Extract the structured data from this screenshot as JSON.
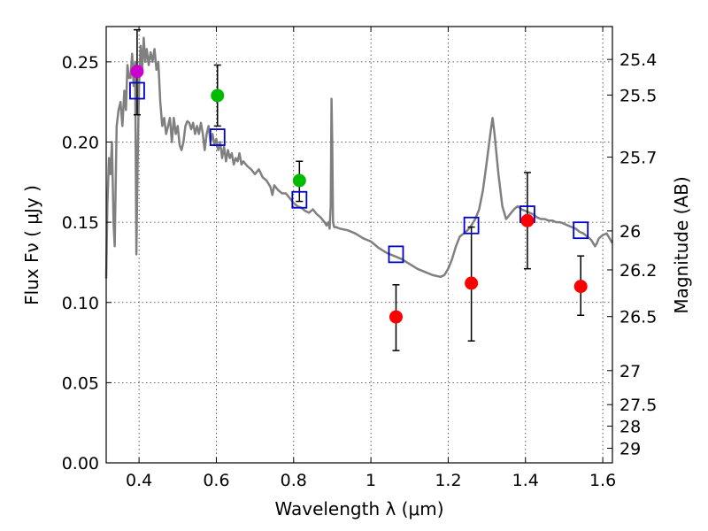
{
  "chart_data": {
    "type": "scatter",
    "title": "",
    "xlabel": "Wavelength  λ (μm)",
    "ylabel": "Flux  Fν  ( μJy )",
    "y2label": "Magnitude (AB)",
    "xlim": [
      0.315,
      1.625
    ],
    "ylim": [
      0.0,
      0.272
    ],
    "grid": true,
    "x_ticks": [
      0.4,
      0.6,
      0.8,
      1.0,
      1.2,
      1.4,
      1.6
    ],
    "x_tick_labels": [
      "0.4",
      "0.6",
      "0.8",
      "1",
      "1.2",
      "1.4",
      "1.6"
    ],
    "y_ticks": [
      0.0,
      0.05,
      0.1,
      0.15,
      0.2,
      0.25
    ],
    "y_tick_labels": [
      "0.00",
      "0.05",
      "0.10",
      "0.15",
      "0.20",
      "0.25"
    ],
    "y2_ticks": [
      {
        "label": "25.4",
        "flux": 0.2515
      },
      {
        "label": "25.5",
        "flux": 0.2293
      },
      {
        "label": "25.7",
        "flux": 0.1906
      },
      {
        "label": "26",
        "flux": 0.1446
      },
      {
        "label": "26.2",
        "flux": 0.1203
      },
      {
        "label": "26.5",
        "flux": 0.0912
      },
      {
        "label": "27",
        "flux": 0.0575
      },
      {
        "label": "27.5",
        "flux": 0.0363
      },
      {
        "label": "28",
        "flux": 0.0229
      },
      {
        "label": "29",
        "flux": 0.0091
      }
    ],
    "series": [
      {
        "kind": "line",
        "color": "#808080",
        "points": [
          [
            0.315,
            0.115
          ],
          [
            0.318,
            0.16
          ],
          [
            0.322,
            0.19
          ],
          [
            0.326,
            0.18
          ],
          [
            0.33,
            0.2
          ],
          [
            0.334,
            0.15
          ],
          [
            0.337,
            0.135
          ],
          [
            0.342,
            0.21
          ],
          [
            0.347,
            0.22
          ],
          [
            0.352,
            0.225
          ],
          [
            0.357,
            0.21
          ],
          [
            0.362,
            0.232
          ],
          [
            0.366,
            0.22
          ],
          [
            0.37,
            0.248
          ],
          [
            0.374,
            0.24
          ],
          [
            0.378,
            0.24
          ],
          [
            0.382,
            0.255
          ],
          [
            0.386,
            0.235
          ],
          [
            0.39,
            0.25
          ],
          [
            0.393,
            0.13
          ],
          [
            0.396,
            0.185
          ],
          [
            0.4,
            0.235
          ],
          [
            0.404,
            0.26
          ],
          [
            0.408,
            0.245
          ],
          [
            0.412,
            0.265
          ],
          [
            0.416,
            0.25
          ],
          [
            0.42,
            0.258
          ],
          [
            0.425,
            0.248
          ],
          [
            0.43,
            0.256
          ],
          [
            0.435,
            0.25
          ],
          [
            0.44,
            0.258
          ],
          [
            0.445,
            0.245
          ],
          [
            0.45,
            0.25
          ],
          [
            0.455,
            0.225
          ],
          [
            0.46,
            0.21
          ],
          [
            0.465,
            0.215
          ],
          [
            0.47,
            0.205
          ],
          [
            0.475,
            0.21
          ],
          [
            0.48,
            0.215
          ],
          [
            0.485,
            0.2
          ],
          [
            0.49,
            0.215
          ],
          [
            0.495,
            0.205
          ],
          [
            0.5,
            0.21
          ],
          [
            0.505,
            0.198
          ],
          [
            0.51,
            0.195
          ],
          [
            0.515,
            0.2
          ],
          [
            0.52,
            0.21
          ],
          [
            0.525,
            0.213
          ],
          [
            0.53,
            0.212
          ],
          [
            0.535,
            0.208
          ],
          [
            0.54,
            0.212
          ],
          [
            0.545,
            0.205
          ],
          [
            0.55,
            0.21
          ],
          [
            0.555,
            0.205
          ],
          [
            0.56,
            0.212
          ],
          [
            0.565,
            0.205
          ],
          [
            0.57,
            0.195
          ],
          [
            0.575,
            0.205
          ],
          [
            0.58,
            0.21
          ],
          [
            0.585,
            0.2
          ],
          [
            0.59,
            0.205
          ],
          [
            0.595,
            0.198
          ],
          [
            0.6,
            0.202
          ],
          [
            0.605,
            0.195
          ],
          [
            0.61,
            0.2
          ],
          [
            0.615,
            0.19
          ],
          [
            0.62,
            0.197
          ],
          [
            0.625,
            0.188
          ],
          [
            0.63,
            0.195
          ],
          [
            0.635,
            0.19
          ],
          [
            0.64,
            0.193
          ],
          [
            0.645,
            0.186
          ],
          [
            0.65,
            0.19
          ],
          [
            0.655,
            0.188
          ],
          [
            0.66,
            0.193
          ],
          [
            0.665,
            0.186
          ],
          [
            0.67,
            0.188
          ],
          [
            0.68,
            0.185
          ],
          [
            0.69,
            0.183
          ],
          [
            0.7,
            0.18
          ],
          [
            0.71,
            0.183
          ],
          [
            0.72,
            0.178
          ],
          [
            0.73,
            0.176
          ],
          [
            0.74,
            0.172
          ],
          [
            0.745,
            0.167
          ],
          [
            0.75,
            0.173
          ],
          [
            0.76,
            0.17
          ],
          [
            0.77,
            0.168
          ],
          [
            0.78,
            0.168
          ],
          [
            0.79,
            0.165
          ],
          [
            0.8,
            0.162
          ],
          [
            0.81,
            0.16
          ],
          [
            0.82,
            0.159
          ],
          [
            0.83,
            0.157
          ],
          [
            0.84,
            0.156
          ],
          [
            0.85,
            0.158
          ],
          [
            0.86,
            0.155
          ],
          [
            0.87,
            0.153
          ],
          [
            0.88,
            0.15
          ],
          [
            0.885,
            0.148
          ],
          [
            0.89,
            0.15
          ],
          [
            0.893,
            0.146
          ],
          [
            0.896,
            0.16
          ],
          [
            0.898,
            0.227
          ],
          [
            0.9,
            0.2
          ],
          [
            0.902,
            0.15
          ],
          [
            0.905,
            0.147
          ],
          [
            0.91,
            0.147
          ],
          [
            0.92,
            0.146
          ],
          [
            0.94,
            0.145
          ],
          [
            0.96,
            0.143
          ],
          [
            0.98,
            0.14
          ],
          [
            1.0,
            0.138
          ],
          [
            1.02,
            0.134
          ],
          [
            1.04,
            0.131
          ],
          [
            1.06,
            0.129
          ],
          [
            1.08,
            0.127
          ],
          [
            1.1,
            0.124
          ],
          [
            1.12,
            0.121
          ],
          [
            1.14,
            0.119
          ],
          [
            1.16,
            0.117
          ],
          [
            1.18,
            0.116
          ],
          [
            1.19,
            0.117
          ],
          [
            1.2,
            0.121
          ],
          [
            1.21,
            0.127
          ],
          [
            1.22,
            0.135
          ],
          [
            1.23,
            0.141
          ],
          [
            1.24,
            0.143
          ],
          [
            1.25,
            0.145
          ],
          [
            1.26,
            0.148
          ],
          [
            1.27,
            0.152
          ],
          [
            1.28,
            0.158
          ],
          [
            1.29,
            0.17
          ],
          [
            1.3,
            0.188
          ],
          [
            1.31,
            0.207
          ],
          [
            1.315,
            0.215
          ],
          [
            1.32,
            0.205
          ],
          [
            1.33,
            0.18
          ],
          [
            1.34,
            0.16
          ],
          [
            1.35,
            0.152
          ],
          [
            1.36,
            0.155
          ],
          [
            1.37,
            0.158
          ],
          [
            1.38,
            0.16
          ],
          [
            1.39,
            0.158
          ],
          [
            1.4,
            0.157
          ],
          [
            1.41,
            0.156
          ],
          [
            1.42,
            0.155
          ],
          [
            1.43,
            0.153
          ],
          [
            1.44,
            0.152
          ],
          [
            1.45,
            0.152
          ],
          [
            1.46,
            0.151
          ],
          [
            1.47,
            0.151
          ],
          [
            1.48,
            0.15
          ],
          [
            1.49,
            0.15
          ],
          [
            1.5,
            0.149
          ],
          [
            1.51,
            0.148
          ],
          [
            1.52,
            0.147
          ],
          [
            1.53,
            0.146
          ],
          [
            1.54,
            0.144
          ],
          [
            1.55,
            0.143
          ],
          [
            1.56,
            0.141
          ],
          [
            1.57,
            0.139
          ],
          [
            1.575,
            0.137
          ],
          [
            1.58,
            0.135
          ],
          [
            1.585,
            0.137
          ],
          [
            1.59,
            0.14
          ],
          [
            1.6,
            0.142
          ],
          [
            1.61,
            0.143
          ],
          [
            1.615,
            0.141
          ],
          [
            1.625,
            0.137
          ]
        ]
      },
      {
        "kind": "squares",
        "color": "#0000cc",
        "points": [
          [
            0.395,
            0.232
          ],
          [
            0.603,
            0.203
          ],
          [
            0.815,
            0.164
          ],
          [
            1.065,
            0.13
          ],
          [
            1.26,
            0.148
          ],
          [
            1.405,
            0.155
          ],
          [
            1.543,
            0.145
          ]
        ]
      },
      {
        "kind": "points",
        "points": [
          {
            "x": 0.395,
            "y": 0.244,
            "err": 0.0,
            "color": "#cc00cc"
          },
          {
            "x": 0.603,
            "y": 0.229,
            "err": 0.0,
            "color": "#00bb00"
          },
          {
            "x": 0.815,
            "y": 0.176,
            "err": 0.0,
            "color": "#00bb00"
          },
          {
            "x": 1.065,
            "y": 0.091,
            "err": 0.0,
            "color": "#ff0000"
          },
          {
            "x": 1.26,
            "y": 0.112,
            "err": 0.0,
            "color": "#ff0000"
          },
          {
            "x": 1.405,
            "y": 0.151,
            "err": 0.0,
            "color": "#ff0000"
          },
          {
            "x": 1.543,
            "y": 0.11,
            "err": 0.0,
            "color": "#ff0000"
          }
        ]
      },
      {
        "kind": "errorbars",
        "color": "#000000",
        "bars": [
          {
            "x": 0.395,
            "low": 0.217,
            "high": 0.27
          },
          {
            "x": 0.603,
            "low": 0.21,
            "high": 0.248
          },
          {
            "x": 0.815,
            "low": 0.163,
            "high": 0.188
          },
          {
            "x": 1.065,
            "low": 0.07,
            "high": 0.111
          },
          {
            "x": 1.26,
            "low": 0.076,
            "high": 0.147
          },
          {
            "x": 1.405,
            "low": 0.121,
            "high": 0.181
          },
          {
            "x": 1.543,
            "low": 0.092,
            "high": 0.129
          }
        ]
      }
    ]
  }
}
